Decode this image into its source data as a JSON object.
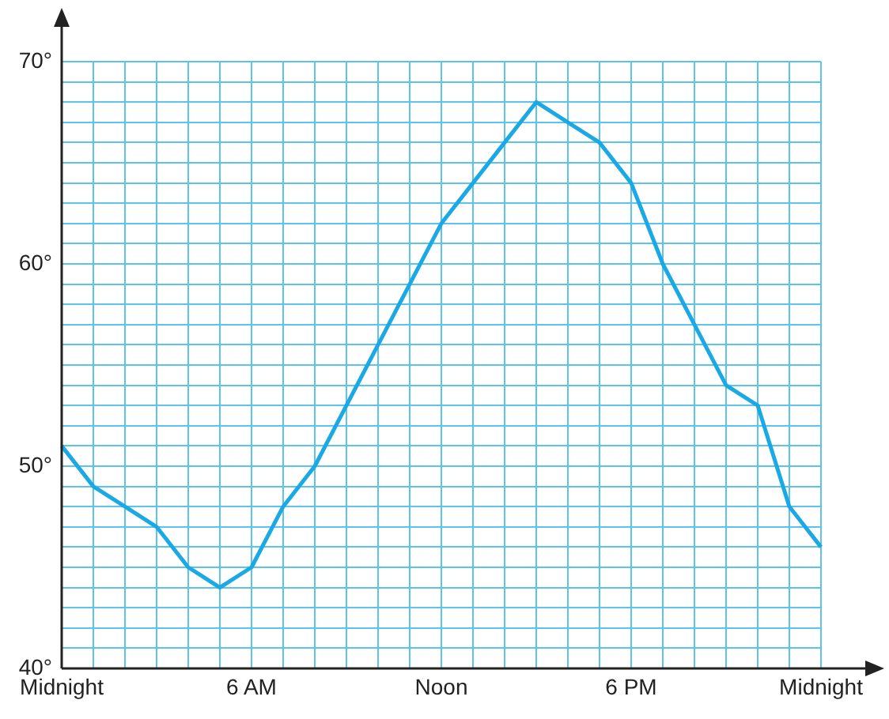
{
  "chart_data": {
    "type": "line",
    "categories": [
      "Midnight",
      null,
      null,
      null,
      null,
      null,
      "6 AM",
      null,
      null,
      null,
      null,
      null,
      "Noon",
      null,
      null,
      null,
      null,
      null,
      "6 PM",
      null,
      null,
      null,
      null,
      null,
      "Midnight"
    ],
    "values": [
      51,
      49,
      48,
      47,
      45,
      44,
      45,
      48,
      50,
      53,
      56,
      59,
      62,
      64,
      66,
      68,
      67,
      66,
      64,
      60,
      57,
      54,
      53,
      48,
      46
    ],
    "color": "#1aa9e4",
    "grid": true,
    "marker": "none",
    "line_style": "solid",
    "ylim": [
      40,
      70
    ],
    "yticks": [
      {
        "value": 40,
        "label": "40°"
      },
      {
        "value": 41,
        "label": null
      },
      {
        "value": 42,
        "label": null
      },
      {
        "value": 43,
        "label": null
      },
      {
        "value": 44,
        "label": null
      },
      {
        "value": 45,
        "label": null
      },
      {
        "value": 46,
        "label": null
      },
      {
        "value": 47,
        "label": null
      },
      {
        "value": 48,
        "label": null
      },
      {
        "value": 49,
        "label": null
      },
      {
        "value": 50,
        "label": "50°"
      },
      {
        "value": 51,
        "label": null
      },
      {
        "value": 52,
        "label": null
      },
      {
        "value": 53,
        "label": null
      },
      {
        "value": 54,
        "label": null
      },
      {
        "value": 55,
        "label": null
      },
      {
        "value": 56,
        "label": null
      },
      {
        "value": 57,
        "label": null
      },
      {
        "value": 58,
        "label": null
      },
      {
        "value": 59,
        "label": null
      },
      {
        "value": 60,
        "label": "60°"
      },
      {
        "value": 61,
        "label": null
      },
      {
        "value": 62,
        "label": null
      },
      {
        "value": 63,
        "label": null
      },
      {
        "value": 64,
        "label": null
      },
      {
        "value": 65,
        "label": null
      },
      {
        "value": 66,
        "label": null
      },
      {
        "value": 67,
        "label": null
      },
      {
        "value": 68,
        "label": null
      },
      {
        "value": 69,
        "label": null
      },
      {
        "value": 70,
        "label": "70°"
      }
    ]
  }
}
